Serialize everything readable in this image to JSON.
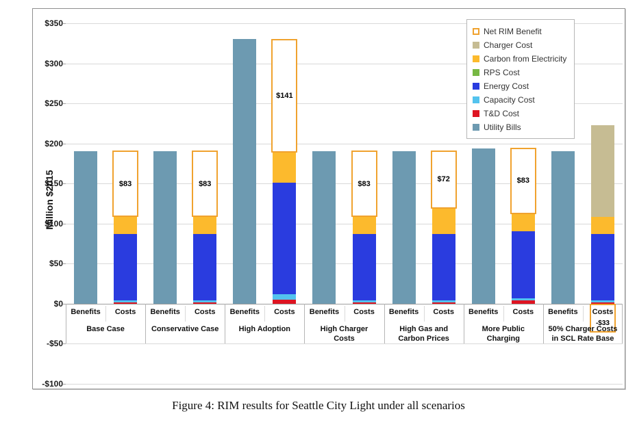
{
  "figure": {
    "caption": "Figure 4: RIM results for Seattle City Light under all scenarios"
  },
  "chart_data": {
    "type": "bar",
    "stacked": true,
    "title": "",
    "ylabel": "Million $2015",
    "ylim": [
      -100,
      350
    ],
    "ytick_interval": 50,
    "ytick_labels": [
      "$350",
      "$300",
      "$250",
      "$200",
      "$150",
      "$100",
      "$50",
      "$0",
      "-$50",
      "-$100"
    ],
    "grid": "horizontal",
    "legend_position": "top-right-inside",
    "pair_labels": [
      "Benefits",
      "Costs"
    ],
    "legend": [
      {
        "label": "Net RIM Benefit",
        "color": "#ffffff",
        "border": "#f0a22e"
      },
      {
        "label": "Charger Cost",
        "color": "#c6bc93"
      },
      {
        "label": "Carbon from Electricity",
        "color": "#fcba2d"
      },
      {
        "label": "RPS Cost",
        "color": "#77b843"
      },
      {
        "label": "Energy Cost",
        "color": "#2a3cdf"
      },
      {
        "label": "Capacity Cost",
        "color": "#53c3ee"
      },
      {
        "label": "T&D Cost",
        "color": "#de1422"
      },
      {
        "label": "Utility Bills",
        "color": "#6d9ab1"
      }
    ],
    "cost_stack_order": [
      "td_cost",
      "capacity_cost",
      "energy_cost",
      "carbon_from_electricity",
      "rps_cost",
      "charger_cost"
    ],
    "cost_colors": {
      "td_cost": "#de1422",
      "capacity_cost": "#53c3ee",
      "energy_cost": "#2a3cdf",
      "carbon_from_electricity": "#fcba2d",
      "rps_cost": "#77b843",
      "charger_cost": "#c6bc93"
    },
    "benefits_color": "#6d9ab1",
    "net_rim_border_color": "#f0a22e",
    "scenarios": [
      {
        "name": "Base Case",
        "benefits_utility_bills": 190,
        "costs": {
          "td_cost": 2,
          "capacity_cost": 2.5,
          "energy_cost": 82.5,
          "carbon_from_electricity": 21,
          "rps_cost": 0,
          "charger_cost": 0
        },
        "net_rim_benefit": 83,
        "net_label": "$83"
      },
      {
        "name": "Conservative Case",
        "benefits_utility_bills": 190,
        "costs": {
          "td_cost": 2,
          "capacity_cost": 2.5,
          "energy_cost": 82.5,
          "carbon_from_electricity": 21,
          "rps_cost": 0,
          "charger_cost": 0
        },
        "net_rim_benefit": 83,
        "net_label": "$83"
      },
      {
        "name": "High Adoption",
        "benefits_utility_bills": 330,
        "costs": {
          "td_cost": 5,
          "capacity_cost": 7,
          "energy_cost": 139,
          "carbon_from_electricity": 38,
          "rps_cost": 0,
          "charger_cost": 0
        },
        "net_rim_benefit": 141,
        "net_label": "$141"
      },
      {
        "name": "High Charger Costs",
        "benefits_utility_bills": 190,
        "costs": {
          "td_cost": 2,
          "capacity_cost": 2.5,
          "energy_cost": 82.5,
          "carbon_from_electricity": 21,
          "rps_cost": 0,
          "charger_cost": 0
        },
        "net_rim_benefit": 83,
        "net_label": "$83"
      },
      {
        "name": "High Gas and Carbon Prices",
        "benefits_utility_bills": 190,
        "costs": {
          "td_cost": 2,
          "capacity_cost": 2.5,
          "energy_cost": 82.5,
          "carbon_from_electricity": 32,
          "rps_cost": 0,
          "charger_cost": 0
        },
        "net_rim_benefit": 72,
        "net_label": "$72"
      },
      {
        "name": "More Public Charging",
        "benefits_utility_bills": 194,
        "costs": {
          "td_cost": 4,
          "capacity_cost": 3,
          "energy_cost": 83,
          "carbon_from_electricity": 22,
          "rps_cost": 0,
          "charger_cost": 0
        },
        "net_rim_benefit": 83,
        "net_label": "$83"
      },
      {
        "name": "50% Charger Costs in SCL Rate Base",
        "benefits_utility_bills": 190,
        "costs": {
          "td_cost": 2,
          "capacity_cost": 2.5,
          "energy_cost": 82.5,
          "carbon_from_electricity": 21,
          "rps_cost": 0,
          "charger_cost": 115
        },
        "net_rim_benefit": -33,
        "net_label": "-$33"
      }
    ]
  }
}
